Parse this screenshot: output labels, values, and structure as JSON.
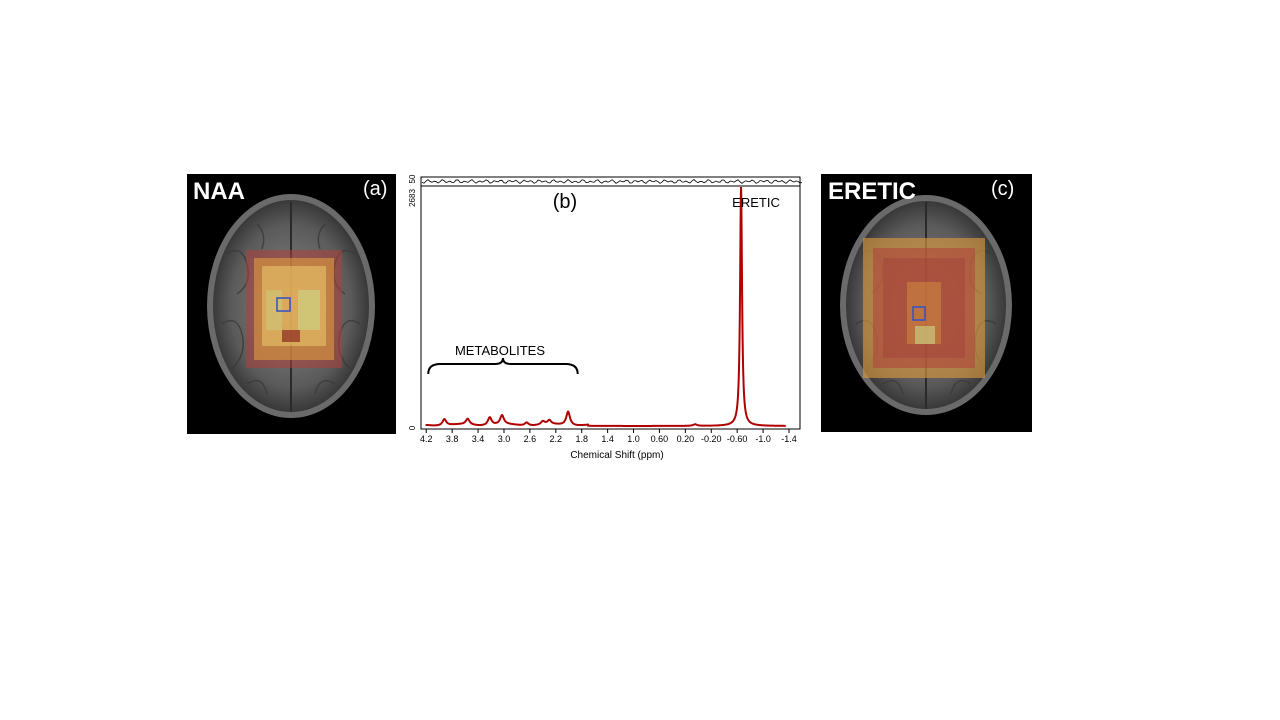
{
  "panels": {
    "a": {
      "title": "NAA",
      "letter": "(a)"
    },
    "b": {
      "letter": "(b)"
    },
    "c": {
      "title": "ERETIC",
      "letter": "(c)"
    }
  },
  "colors": {
    "spectrum": "#b00000",
    "voxel_marker": "#3050c8",
    "overlay_inner": "#e8c36a",
    "overlay_outer": "#b0403a",
    "overlay_green": "#c8e090"
  },
  "chart_data": {
    "type": "line",
    "title": "",
    "xlabel": "Chemical Shift (ppm)",
    "ylabel": "",
    "x_reversed": true,
    "xlim": [
      4.25,
      -1.4
    ],
    "ylim": [
      0,
      2683
    ],
    "x_ticks": [
      "4.2",
      "3.8",
      "3.4",
      "3.0",
      "2.6",
      "2.2",
      "1.8",
      "1.4",
      "1.0",
      "0.60",
      "0.20",
      "-0.20",
      "-0.60",
      "-1.0",
      "-1.4"
    ],
    "y_ticks": [
      "0",
      "2683"
    ],
    "residual_panel_tick": "50",
    "annotations": [
      {
        "label": "METABOLITES",
        "x_from": 4.2,
        "x_to": 1.8
      },
      {
        "label": "ERETIC",
        "x": -0.66
      }
    ],
    "series": [
      {
        "peaks": [
          {
            "ppm": 3.92,
            "height": 72
          },
          {
            "ppm": 3.56,
            "height": 65
          },
          {
            "ppm": 3.22,
            "height": 90
          },
          {
            "ppm": 3.03,
            "height": 102
          },
          {
            "ppm": 2.65,
            "height": 35
          },
          {
            "ppm": 2.4,
            "height": 38
          },
          {
            "ppm": 2.3,
            "height": 45
          },
          {
            "ppm": 2.01,
            "height": 155
          },
          {
            "ppm": 0.05,
            "height": 18
          },
          {
            "ppm": -0.66,
            "height": 2683
          }
        ]
      }
    ]
  }
}
